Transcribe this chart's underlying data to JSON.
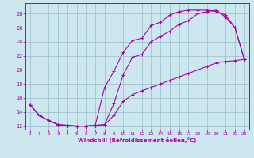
{
  "xlabel": "Windchill (Refroidissement éolien,°C)",
  "bg_color": "#cce8ee",
  "line_color": "#aa00aa",
  "grid_color": "#99bbcc",
  "xlim": [
    -0.5,
    23.5
  ],
  "ylim": [
    11.5,
    29.5
  ],
  "xticks": [
    0,
    1,
    2,
    3,
    4,
    5,
    6,
    7,
    8,
    9,
    10,
    11,
    12,
    13,
    14,
    15,
    16,
    17,
    18,
    19,
    20,
    21,
    22,
    23
  ],
  "yticks": [
    12,
    14,
    16,
    18,
    20,
    22,
    24,
    26,
    28
  ],
  "curve1_x": [
    0,
    1,
    2,
    3,
    4,
    5,
    6,
    7,
    8,
    9,
    10,
    11,
    12,
    13,
    14,
    15,
    16,
    17,
    18,
    19,
    20,
    21,
    22,
    23
  ],
  "curve1_y": [
    15.0,
    13.5,
    12.8,
    12.2,
    12.1,
    12.0,
    12.0,
    12.1,
    12.2,
    15.2,
    19.3,
    21.8,
    22.2,
    24.0,
    24.8,
    25.5,
    26.5,
    27.0,
    28.0,
    28.3,
    28.5,
    27.5,
    26.0,
    21.5
  ],
  "curve2_x": [
    0,
    1,
    2,
    3,
    4,
    5,
    6,
    7,
    8,
    9,
    10,
    11,
    12,
    13,
    14,
    15,
    16,
    17,
    18,
    19,
    20,
    21,
    22,
    23
  ],
  "curve2_y": [
    15.0,
    13.5,
    12.8,
    12.2,
    12.1,
    12.0,
    12.0,
    12.1,
    17.5,
    19.8,
    22.5,
    24.2,
    24.5,
    26.3,
    26.8,
    27.8,
    28.3,
    28.5,
    28.5,
    28.5,
    28.3,
    27.8,
    26.0,
    21.5
  ],
  "curve3_x": [
    0,
    1,
    2,
    3,
    4,
    5,
    6,
    7,
    8,
    9,
    10,
    11,
    12,
    13,
    14,
    15,
    16,
    17,
    18,
    19,
    20,
    21,
    22,
    23
  ],
  "curve3_y": [
    15.0,
    13.5,
    12.8,
    12.2,
    12.1,
    12.0,
    12.0,
    12.1,
    12.2,
    13.5,
    15.5,
    16.5,
    17.0,
    17.5,
    18.0,
    18.5,
    19.0,
    19.5,
    20.0,
    20.5,
    21.0,
    21.2,
    21.3,
    21.5
  ]
}
